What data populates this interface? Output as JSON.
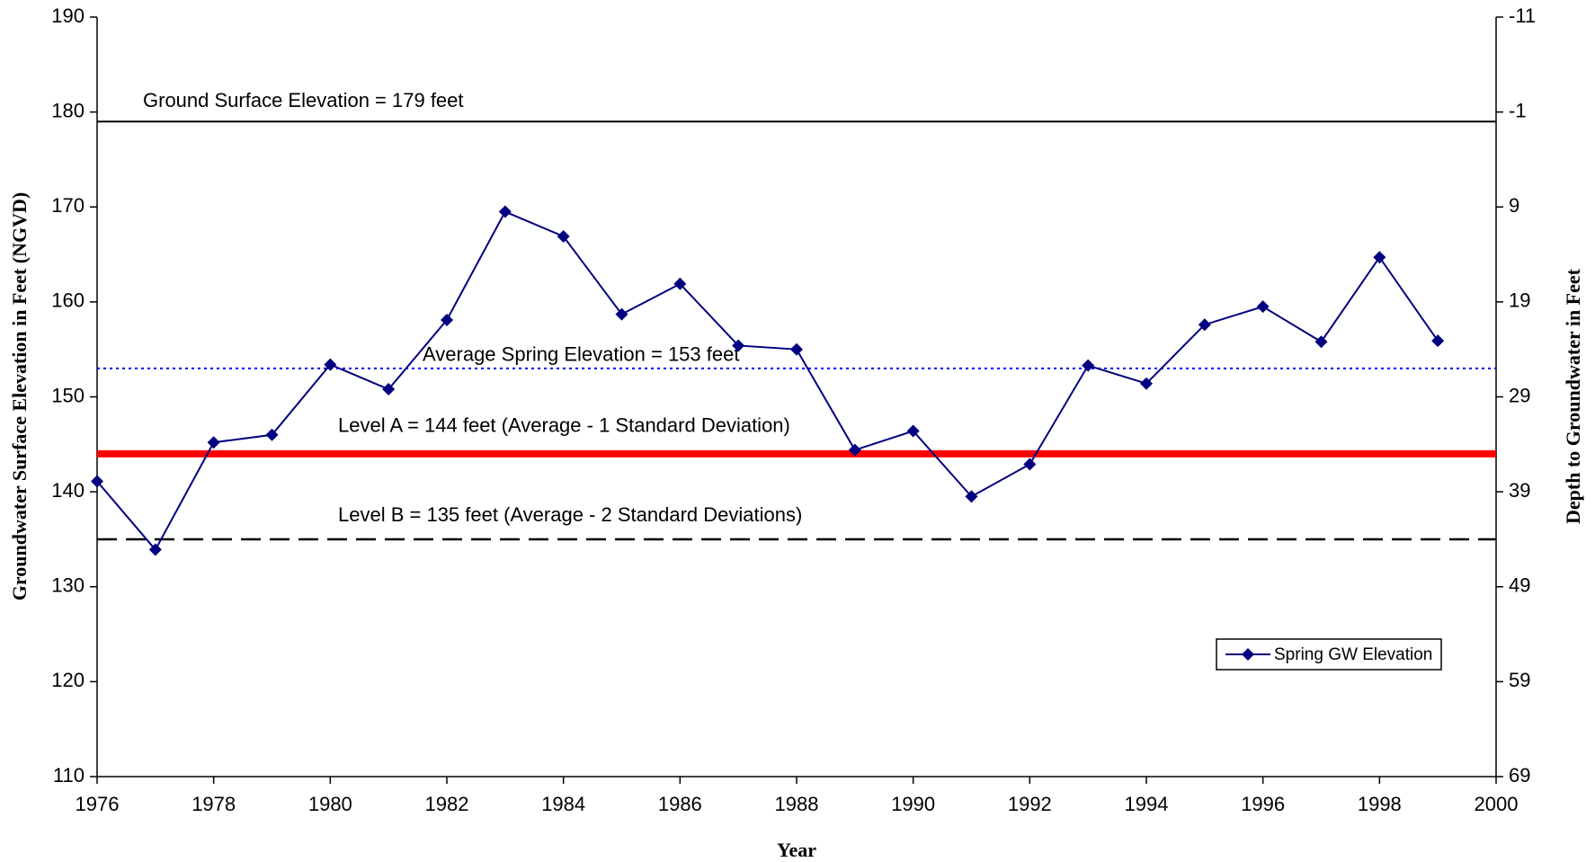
{
  "chart_data": {
    "type": "line",
    "xlabel": "Year",
    "ylabel": "Groundwater Surface Elevation in Feet (NGVD)",
    "y2label": "Depth to Groundwater in Feet",
    "x": [
      1976,
      1977,
      1978,
      1979,
      1980,
      1981,
      1982,
      1983,
      1984,
      1985,
      1986,
      1987,
      1988,
      1989,
      1990,
      1991,
      1992,
      1993,
      1994,
      1995,
      1996,
      1997,
      1998,
      1999
    ],
    "series": [
      {
        "name": "Spring GW Elevation",
        "color": "#000080",
        "marker": "diamond",
        "values": [
          141.1,
          133.9,
          145.2,
          146.0,
          153.4,
          150.8,
          158.1,
          169.5,
          166.9,
          158.7,
          161.9,
          155.4,
          155.0,
          144.4,
          146.4,
          139.5,
          142.9,
          153.3,
          151.4,
          157.6,
          159.5,
          155.8,
          164.7,
          155.9
        ]
      }
    ],
    "reference_lines": [
      {
        "value": 179,
        "label": "Ground Surface Elevation = 179 feet",
        "color": "#000000",
        "style": "solid"
      },
      {
        "value": 153,
        "label": "Average Spring Elevation = 153 feet",
        "color": "#0000ff",
        "style": "dotted"
      },
      {
        "value": 144,
        "label": "Level A = 144 feet (Average - 1 Standard Deviation)",
        "color": "#ff0000",
        "style": "thick"
      },
      {
        "value": 135,
        "label": "Level B = 135 feet (Average - 2 Standard Deviations)",
        "color": "#000000",
        "style": "dashed"
      }
    ],
    "xlim": [
      1976,
      2000
    ],
    "xticks": [
      1976,
      1978,
      1980,
      1982,
      1984,
      1986,
      1988,
      1990,
      1992,
      1994,
      1996,
      1998,
      2000
    ],
    "ylim": [
      110,
      190
    ],
    "yticks": [
      110,
      120,
      130,
      140,
      150,
      160,
      170,
      180,
      190
    ],
    "y2lim": [
      69,
      -11
    ],
    "y2ticks": [
      69,
      59,
      49,
      39,
      29,
      19,
      9,
      -1,
      -11
    ],
    "legend": "lower right",
    "grid": false
  }
}
